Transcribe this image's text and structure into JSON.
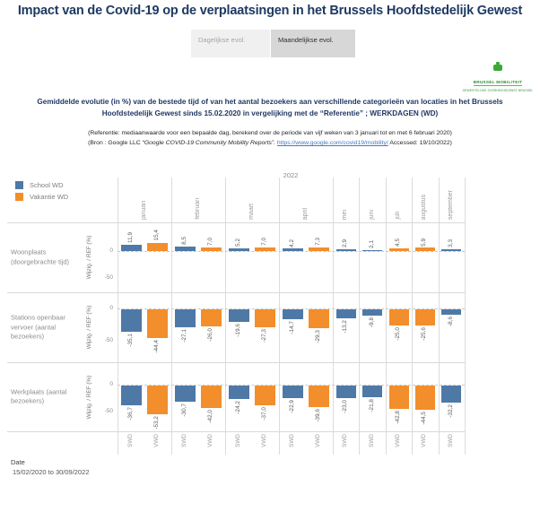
{
  "page": {
    "title": "Impact van de Covid-19 op de verplaatsingen in het Brussels Hoofdstedelijk Gewest"
  },
  "tabs": [
    {
      "label": "Dagelijkse evol.",
      "active": false
    },
    {
      "label": "Maandelijkse evol.",
      "active": true
    }
  ],
  "logo": {
    "line1": "BRUSSEL MOBILITEIT",
    "line2": "GEWESTELIJKE OVERHEIDSDIENST BRUSSEL"
  },
  "subtitle": "Gemiddelde evolutie (in %) van de bestede tijd of van het aantal bezoekers aan verschillende categorieën van locaties in het Brussels Hoofdstedelijk Gewest sinds 15.02.2020 in vergelijking met de “Referentie” ; WERKDAGEN (WD)",
  "notes": {
    "referentie": "(Referentie: mediaanwaarde voor een bepaalde dag, berekend over de periode van vijf weken van 3 januari tot en met 6 februari 2020)",
    "bron_prefix": "(Bron : Google LLC ",
    "bron_italic": "“Google COVID-19 Community Mobility Reports”.",
    "bron_link": "https://www.google.com/covid19/mobility/",
    "bron_suffix": " Accessed: 19/10/2022)"
  },
  "legend": [
    {
      "label": "School WD",
      "color": "#4e79a7"
    },
    {
      "label": "Vakantie WD",
      "color": "#f28e2b"
    }
  ],
  "date_filter": {
    "label": "Date",
    "value": "15/02/2020 to 30/09/2022"
  },
  "chart_data": {
    "type": "bar",
    "year_label": "2022",
    "ylabel": "Wijzig. / REF (%)",
    "yticks": [
      0,
      -50
    ],
    "ylim": [
      25,
      -80
    ],
    "colors": {
      "SWD": "#4e79a7",
      "VWD": "#f28e2b"
    },
    "legend_map": {
      "SWD": "School WD",
      "VWD": "Vakantie WD"
    },
    "columns": [
      {
        "month": "januari",
        "bars": [
          "SWD",
          "VWD"
        ]
      },
      {
        "month": "februari",
        "bars": [
          "SWD",
          "VWD"
        ]
      },
      {
        "month": "maart",
        "bars": [
          "SWD",
          "VWD"
        ]
      },
      {
        "month": "april",
        "bars": [
          "SWD",
          "VWD"
        ]
      },
      {
        "month": "mei",
        "bars": [
          "SWD"
        ]
      },
      {
        "month": "juni",
        "bars": [
          "SWD"
        ]
      },
      {
        "month": "juli",
        "bars": [
          "VWD"
        ]
      },
      {
        "month": "augustus",
        "bars": [
          "VWD"
        ]
      },
      {
        "month": "september",
        "bars": [
          "SWD"
        ]
      }
    ],
    "rows": [
      {
        "label": "Woonplaats (doorgebrachte tijd)",
        "values": [
          11.9,
          15.4,
          8.5,
          7.0,
          5.2,
          7.0,
          4.2,
          7.3,
          2.9,
          2.1,
          4.5,
          5.9,
          3.3
        ]
      },
      {
        "label": "Stations openbaar vervoer (aantal bezoekers)",
        "values": [
          -35.1,
          -44.4,
          -27.1,
          -26.0,
          -19.6,
          -27.3,
          -14.7,
          -29.3,
          -13.2,
          -9.8,
          -25.0,
          -25.6,
          -8.6
        ]
      },
      {
        "label": "Werkplaats (aantal bezoekers)",
        "values": [
          -36.7,
          -53.2,
          -30.7,
          -42.0,
          -24.2,
          -37.0,
          -22.9,
          -39.6,
          -23.0,
          -21.8,
          -42.8,
          -44.5,
          -32.2
        ]
      }
    ]
  }
}
